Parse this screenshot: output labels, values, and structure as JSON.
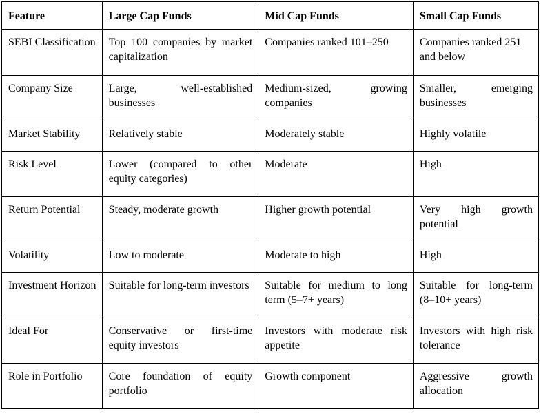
{
  "header": {
    "feature": "Feature",
    "large": "Large Cap Funds",
    "mid": "Mid Cap Funds",
    "small": "Small Cap Funds"
  },
  "rows": [
    {
      "feature": "SEBI Classification",
      "large": "Top 100 companies by market capitalization",
      "mid": "Companies ranked 101–250",
      "small": "Companies ranked 251 and below"
    },
    {
      "feature": "Company Size",
      "large": "Large, well-established businesses",
      "mid": "Medium-sized, growing companies",
      "small": "Smaller, emerging businesses"
    },
    {
      "feature": "Market Stability",
      "large": "Relatively stable",
      "mid": "Moderately stable",
      "small": "Highly volatile"
    },
    {
      "feature": "Risk Level",
      "large": "Lower (compared to other equity categories)",
      "mid": "Moderate",
      "small": "High"
    },
    {
      "feature": "Return Potential",
      "large": "Steady, moderate growth",
      "mid": "Higher growth potential",
      "small": "Very high growth potential"
    },
    {
      "feature": "Volatility",
      "large": "Low to moderate",
      "mid": "Moderate to high",
      "small": "High"
    },
    {
      "feature": "Investment Horizon",
      "large": "Suitable for long-term investors",
      "mid": "Suitable for medium to long term (5–7+ years)",
      "small": "Suitable for long-term (8–10+ years)"
    },
    {
      "feature": "Ideal For",
      "large": "Conservative or first-time equity investors",
      "mid": "Investors with moderate risk appetite",
      "small": "Investors with high risk tolerance"
    },
    {
      "feature": "Role in Portfolio",
      "large": "Core foundation of equity portfolio",
      "mid": "Growth component",
      "small": "Aggressive growth allocation"
    }
  ]
}
